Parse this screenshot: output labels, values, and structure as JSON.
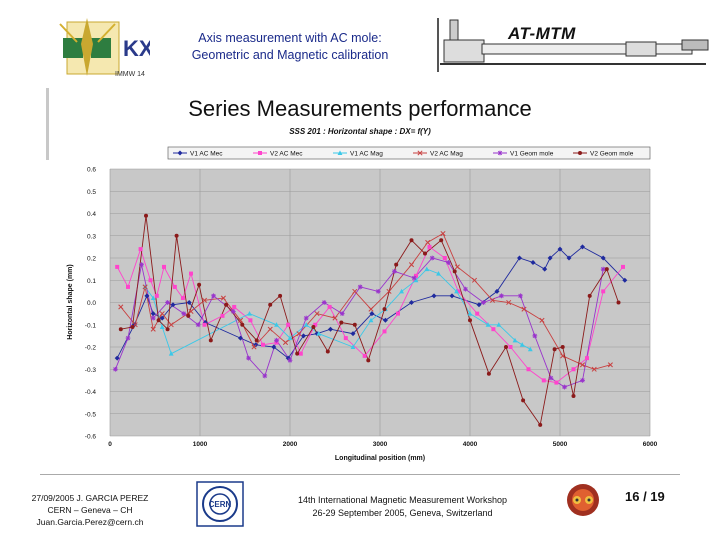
{
  "header": {
    "title_line1": "Axis measurement with AC mole:",
    "title_line2": "Geometric and Magnetic calibration",
    "brand": "AT-MTM",
    "logo_caption": "IMMW 14"
  },
  "slide_title": "Series Measurements performance",
  "footer": {
    "left_line1": "27/09/2005 J. GARCIA PEREZ",
    "left_line2": "CERN – Geneva – CH",
    "left_line3": "Juan.Garcia.Perez@cern.ch",
    "center_line1": "14th International Magnetic Measurement Workshop",
    "center_line2": "26-29 September 2005, Geneva, Switzerland",
    "page": "16 / 19"
  },
  "chart_data": {
    "type": "line",
    "title": "SSS 201 : Horizontal shape : DX= f(Y)",
    "xlabel": "Longitudinal position (mm)",
    "ylabel": "Horizontal shape (mm)",
    "xlim": [
      0,
      6000
    ],
    "ylim": [
      -0.6,
      0.6
    ],
    "xticks": [
      0,
      1000,
      2000,
      3000,
      4000,
      5000,
      6000
    ],
    "yticks": [
      0.6,
      0.5,
      0.4,
      0.3,
      0.2,
      0.1,
      0.0,
      -0.1,
      -0.2,
      -0.3,
      -0.4,
      -0.5,
      -0.6
    ],
    "grid": true,
    "legend": "top",
    "series": [
      {
        "name": "V1 AC Mec",
        "color": "#1f2a9e",
        "marker": "diamond",
        "x": [
          80,
          270,
          410,
          480,
          580,
          700,
          880,
          1060,
          1450,
          1620,
          1820,
          1980,
          2150,
          2300,
          2450,
          2700,
          2910,
          3060,
          3350,
          3600,
          3800,
          4100,
          4300,
          4550,
          4700,
          4830,
          4890,
          5000,
          5100,
          5250,
          5480,
          5720
        ],
        "y": [
          -0.25,
          -0.1,
          0.03,
          -0.05,
          -0.07,
          -0.01,
          0.0,
          -0.09,
          -0.16,
          -0.19,
          -0.2,
          -0.25,
          -0.15,
          -0.14,
          -0.12,
          -0.14,
          -0.05,
          -0.08,
          0.0,
          0.03,
          0.03,
          -0.01,
          0.05,
          0.2,
          0.18,
          0.15,
          0.2,
          0.24,
          0.2,
          0.25,
          0.2,
          0.1
        ]
      },
      {
        "name": "V2 AC Mec",
        "color": "#ff44cc",
        "marker": "square",
        "x": [
          80,
          200,
          340,
          450,
          520,
          600,
          720,
          810,
          900,
          1050,
          1250,
          1380,
          1560,
          1700,
          1850,
          1980,
          2120,
          2280,
          2440,
          2620,
          2830,
          3050,
          3200,
          3400,
          3550,
          3720,
          3870,
          4080,
          4260,
          4450,
          4650,
          4820,
          4960,
          5150,
          5300,
          5480,
          5700
        ],
        "y": [
          0.16,
          0.07,
          0.24,
          0.1,
          0.03,
          0.16,
          0.07,
          0.02,
          0.13,
          -0.1,
          -0.06,
          -0.02,
          -0.08,
          -0.19,
          -0.18,
          -0.1,
          -0.23,
          -0.1,
          -0.02,
          -0.16,
          -0.24,
          -0.13,
          -0.05,
          0.12,
          0.25,
          0.2,
          0.05,
          -0.05,
          -0.12,
          -0.2,
          -0.3,
          -0.35,
          -0.36,
          -0.3,
          -0.25,
          0.05,
          0.16
        ]
      },
      {
        "name": "V1 AC Mag",
        "color": "#3ac8e8",
        "marker": "triangle",
        "x": [
          390,
          480,
          580,
          680,
          1550,
          1850,
          2000,
          2180,
          2320,
          2700,
          2900,
          3060,
          3240,
          3400,
          3520,
          3650,
          3850,
          4000,
          4200,
          4320,
          4500,
          4580,
          4670
        ],
        "y": [
          0.07,
          0.02,
          -0.11,
          -0.23,
          -0.05,
          -0.1,
          -0.16,
          -0.1,
          -0.14,
          -0.2,
          -0.08,
          -0.03,
          0.05,
          0.1,
          0.15,
          0.13,
          0.05,
          -0.05,
          -0.1,
          -0.1,
          -0.17,
          -0.19,
          -0.21
        ]
      },
      {
        "name": "V2 AC Mag",
        "color": "#c84040",
        "marker": "x",
        "x": [
          120,
          280,
          390,
          480,
          580,
          680,
          900,
          1050,
          1260,
          1450,
          1600,
          1780,
          1950,
          2100,
          2300,
          2500,
          2720,
          2900,
          3100,
          3350,
          3530,
          3700,
          3860,
          4050,
          4250,
          4430,
          4600,
          4800,
          5030,
          5250,
          5380,
          5560
        ],
        "y": [
          -0.02,
          -0.1,
          0.07,
          -0.12,
          -0.05,
          -0.1,
          -0.04,
          0.01,
          0.02,
          -0.08,
          -0.2,
          -0.12,
          -0.18,
          -0.14,
          -0.05,
          -0.07,
          0.05,
          -0.03,
          0.05,
          0.17,
          0.27,
          0.31,
          0.16,
          0.1,
          0.01,
          0.0,
          -0.03,
          -0.08,
          -0.24,
          -0.28,
          -0.3,
          -0.28
        ]
      },
      {
        "name": "V1 Geom mole",
        "color": "#9933cc",
        "marker": "star",
        "x": [
          60,
          200,
          350,
          480,
          640,
          820,
          980,
          1150,
          1370,
          1540,
          1720,
          1850,
          2000,
          2180,
          2380,
          2580,
          2780,
          2980,
          3160,
          3380,
          3580,
          3760,
          3950,
          4150,
          4350,
          4560,
          4720,
          4900,
          5050,
          5250,
          5480
        ],
        "y": [
          -0.3,
          -0.16,
          0.17,
          -0.07,
          0.0,
          -0.05,
          -0.1,
          0.03,
          -0.04,
          -0.25,
          -0.33,
          -0.17,
          -0.26,
          -0.07,
          0.0,
          -0.05,
          0.07,
          0.05,
          0.14,
          0.11,
          0.2,
          0.18,
          0.06,
          0.0,
          0.03,
          0.03,
          -0.15,
          -0.34,
          -0.38,
          -0.35,
          0.15
        ]
      },
      {
        "name": "V2 Geom mole",
        "color": "#8b1a1a",
        "marker": "circle",
        "x": [
          120,
          250,
          400,
          540,
          640,
          740,
          870,
          990,
          1120,
          1290,
          1470,
          1630,
          1780,
          1890,
          2080,
          2260,
          2420,
          2570,
          2720,
          2870,
          3050,
          3180,
          3350,
          3500,
          3680,
          3830,
          4000,
          4210,
          4400,
          4590,
          4780,
          4940,
          5030,
          5150,
          5330,
          5520,
          5650
        ],
        "y": [
          -0.12,
          -0.11,
          0.39,
          -0.08,
          -0.12,
          0.3,
          -0.06,
          0.08,
          -0.17,
          -0.01,
          -0.1,
          -0.17,
          -0.01,
          0.03,
          -0.23,
          -0.11,
          -0.22,
          -0.09,
          -0.1,
          -0.26,
          -0.03,
          0.17,
          0.28,
          0.22,
          0.28,
          0.14,
          -0.08,
          -0.32,
          -0.2,
          -0.44,
          -0.55,
          -0.21,
          -0.2,
          -0.42,
          0.03,
          0.15,
          0.0
        ]
      }
    ]
  }
}
